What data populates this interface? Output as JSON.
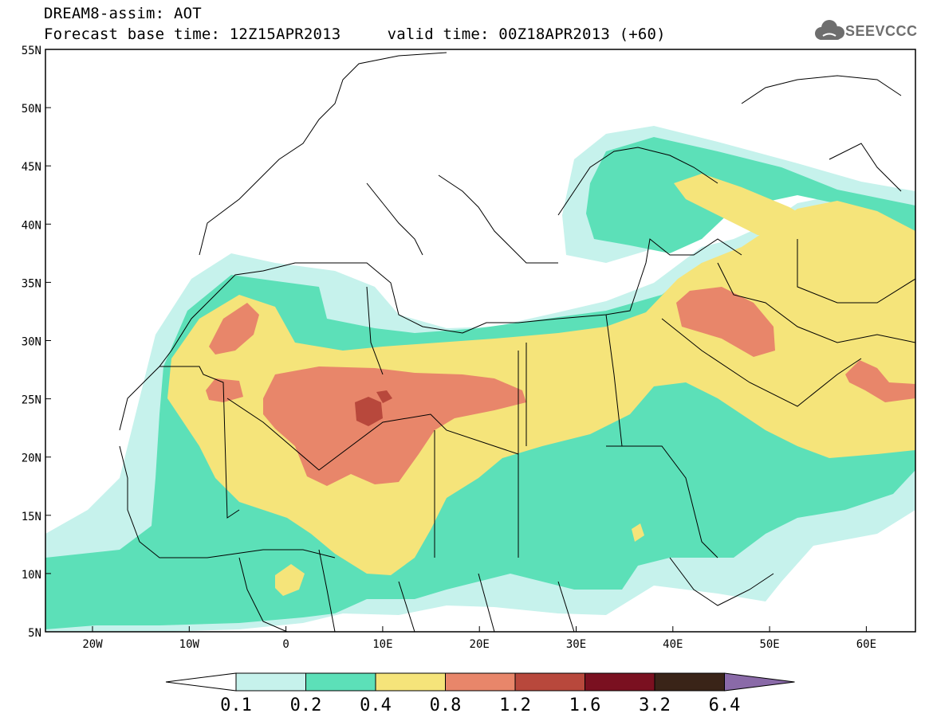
{
  "header": {
    "model_line": "DREAM8-assim: AOT",
    "time_line": "Forecast base time: 12Z15APR2013     valid time: 00Z18APR2013 (+60)"
  },
  "logo": {
    "text": "SEEVCCC",
    "icon": "cloud-icon"
  },
  "map": {
    "lat_labels": [
      "55N",
      "50N",
      "45N",
      "40N",
      "35N",
      "30N",
      "25N",
      "20N",
      "15N",
      "10N",
      "5N"
    ],
    "lon_labels": [
      "20W",
      "10W",
      "0",
      "10E",
      "20E",
      "30E",
      "40E",
      "50E",
      "60E"
    ]
  },
  "colorbar": {
    "labels": [
      "0.1",
      "0.2",
      "0.4",
      "0.8",
      "1.2",
      "1.6",
      "3.2",
      "6.4"
    ],
    "colors": [
      "#ffffff",
      "#c6f2ec",
      "#5ce0b8",
      "#f5e47a",
      "#e8866a",
      "#b8483c",
      "#7a1020",
      "#3a2418",
      "#8a6aa8"
    ]
  },
  "colors": {
    "land_border": "#000000",
    "level_0_1": "#c6f2ec",
    "level_0_2": "#5ce0b8",
    "level_0_4": "#f5e47a",
    "level_0_8": "#e8866a",
    "level_1_2": "#b8483c"
  }
}
